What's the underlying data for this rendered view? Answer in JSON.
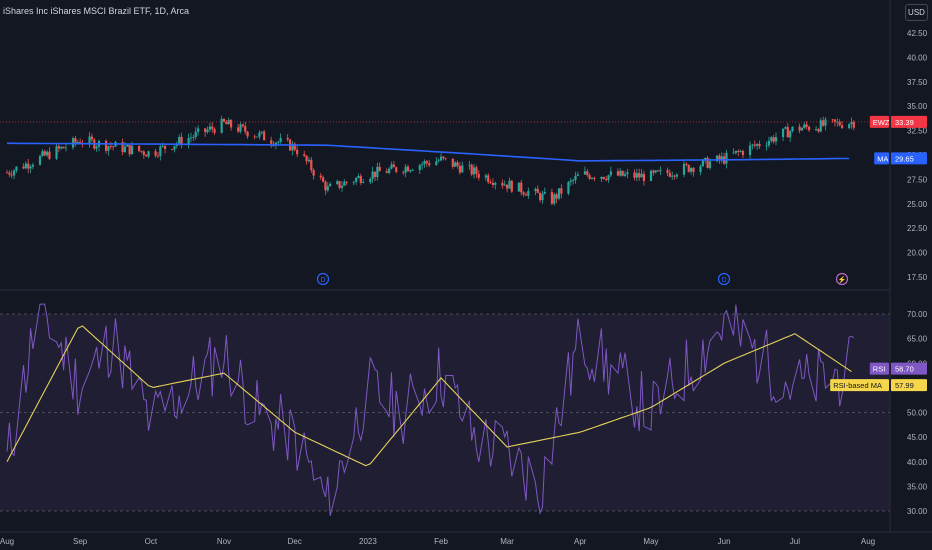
{
  "header": {
    "title": "iShares Inc iShares MSCI Brazil ETF, 1D, Arca",
    "currency": "USD"
  },
  "colors": {
    "background": "#131722",
    "up": "#26a69a",
    "down": "#ef5350",
    "ma_line": "#2962ff",
    "rsi_line": "#7e57c2",
    "rsi_ma_line": "#e6d25a",
    "rsi_band": "#2a2440"
  },
  "price_axis": {
    "ticks": [
      "42.50",
      "40.00",
      "37.50",
      "35.00",
      "32.50",
      "30.00",
      "27.50",
      "25.00",
      "22.50",
      "20.00",
      "17.50"
    ]
  },
  "rsi_axis": {
    "ticks": [
      "70.00",
      "65.00",
      "60.00",
      "55.00",
      "50.00",
      "45.00",
      "40.00",
      "35.00",
      "30.00"
    ]
  },
  "time_axis": {
    "labels": [
      "Aug",
      "Sep",
      "Oct",
      "Nov",
      "Dec",
      "2023",
      "Feb",
      "Mar",
      "Apr",
      "May",
      "Jun",
      "Jul",
      "Aug"
    ]
  },
  "tags": {
    "symbol": {
      "label": "EWZ",
      "value": "33.39",
      "color": "#f23645"
    },
    "ma": {
      "label": "MA",
      "value": "29.65",
      "color": "#2962ff"
    },
    "rsi": {
      "label": "RSI",
      "value": "58.70",
      "color": "#7e57c2"
    },
    "rsi_ma": {
      "label": "RSI-based MA",
      "value": "57.99",
      "color": "#f6d64a"
    }
  },
  "events": [
    {
      "glyph": "D",
      "kind": "dividend"
    },
    {
      "glyph": "D",
      "kind": "dividend"
    },
    {
      "glyph": "⚡",
      "kind": "split"
    }
  ],
  "chart_data": [
    {
      "type": "candlestick",
      "title": "iShares Inc iShares MSCI Brazil ETF, 1D, Arca",
      "ylim": [
        16,
        44
      ],
      "x_range": [
        "2022-08-01",
        "2023-08-01"
      ],
      "price_samples": [
        {
          "date": "2022-08-01",
          "close": 28.2
        },
        {
          "date": "2022-09-01",
          "close": 31.5
        },
        {
          "date": "2022-10-01",
          "close": 30.2
        },
        {
          "date": "2022-11-01",
          "close": 33.2
        },
        {
          "date": "2022-12-01",
          "close": 30.8
        },
        {
          "date": "2022-12-15",
          "close": 26.5
        },
        {
          "date": "2023-01-01",
          "close": 28.0
        },
        {
          "date": "2023-02-01",
          "close": 29.5
        },
        {
          "date": "2023-03-01",
          "close": 27.0
        },
        {
          "date": "2023-03-20",
          "close": 25.4
        },
        {
          "date": "2023-04-01",
          "close": 28.0
        },
        {
          "date": "2023-05-01",
          "close": 27.8
        },
        {
          "date": "2023-06-01",
          "close": 29.6
        },
        {
          "date": "2023-07-01",
          "close": 32.7
        },
        {
          "date": "2023-07-26",
          "close": 33.39
        }
      ],
      "ma_samples": [
        {
          "date": "2022-08-01",
          "value": 31.2
        },
        {
          "date": "2022-10-15",
          "value": 31.1
        },
        {
          "date": "2022-12-15",
          "value": 31.0
        },
        {
          "date": "2023-02-15",
          "value": 30.1
        },
        {
          "date": "2023-04-01",
          "value": 29.4
        },
        {
          "date": "2023-06-01",
          "value": 29.5
        },
        {
          "date": "2023-07-26",
          "value": 29.65
        }
      ]
    },
    {
      "type": "line",
      "title": "RSI",
      "ylim": [
        29,
        72
      ],
      "bands": [
        30,
        50,
        70
      ],
      "rsi_samples": [
        {
          "date": "2022-08-01",
          "value": 40
        },
        {
          "date": "2022-08-15",
          "value": 72
        },
        {
          "date": "2022-09-01",
          "value": 55
        },
        {
          "date": "2022-09-15",
          "value": 65
        },
        {
          "date": "2022-10-01",
          "value": 48
        },
        {
          "date": "2022-11-01",
          "value": 62
        },
        {
          "date": "2022-11-15",
          "value": 50
        },
        {
          "date": "2022-12-01",
          "value": 45
        },
        {
          "date": "2022-12-15",
          "value": 31
        },
        {
          "date": "2023-01-01",
          "value": 55
        },
        {
          "date": "2023-01-15",
          "value": 50
        },
        {
          "date": "2023-02-01",
          "value": 58
        },
        {
          "date": "2023-02-15",
          "value": 45
        },
        {
          "date": "2023-03-01",
          "value": 42
        },
        {
          "date": "2023-03-15",
          "value": 35
        },
        {
          "date": "2023-04-01",
          "value": 65
        },
        {
          "date": "2023-05-01",
          "value": 50
        },
        {
          "date": "2023-06-01",
          "value": 68
        },
        {
          "date": "2023-07-01",
          "value": 55
        },
        {
          "date": "2023-07-26",
          "value": 58.7
        }
      ],
      "rsi_ma_samples": [
        {
          "date": "2022-08-01",
          "value": 40
        },
        {
          "date": "2022-09-01",
          "value": 68
        },
        {
          "date": "2022-10-01",
          "value": 55
        },
        {
          "date": "2022-11-01",
          "value": 58
        },
        {
          "date": "2022-12-01",
          "value": 46
        },
        {
          "date": "2023-01-01",
          "value": 39
        },
        {
          "date": "2023-02-01",
          "value": 57
        },
        {
          "date": "2023-03-01",
          "value": 43
        },
        {
          "date": "2023-04-01",
          "value": 46
        },
        {
          "date": "2023-05-01",
          "value": 51
        },
        {
          "date": "2023-06-01",
          "value": 60
        },
        {
          "date": "2023-07-01",
          "value": 66
        },
        {
          "date": "2023-07-26",
          "value": 57.99
        }
      ]
    }
  ]
}
